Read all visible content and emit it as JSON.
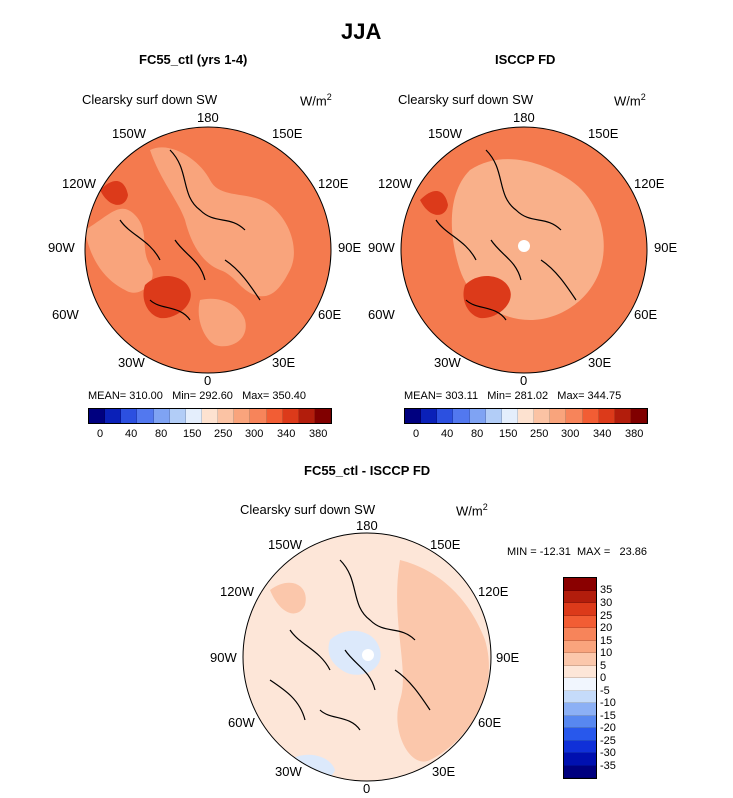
{
  "page": {
    "title": "JJA",
    "panel_left_title": "FC55_ctl (yrs 1-4)",
    "panel_right_title": "ISCCP FD",
    "panel_bottom_title": "FC55_ctl - ISCCP FD"
  },
  "maps": [
    {
      "id": "left",
      "label": "Clearsky surf down SW",
      "units": "W/m",
      "units_sup": "2",
      "lon_labels": [
        "180",
        "150E",
        "120E",
        "90E",
        "60E",
        "30E",
        "0",
        "30W",
        "60W",
        "90W",
        "120W",
        "150W"
      ],
      "stats": {
        "mean": "MEAN= 310.00",
        "min": "Min= 292.60",
        "max": "Max= 350.40"
      },
      "colorbar": {
        "colors": [
          "#00007f",
          "#0a20b8",
          "#2c50e0",
          "#5278ef",
          "#7fa3f3",
          "#b2cdf7",
          "#e4eefc",
          "#fde2d0",
          "#fbc3a4",
          "#f9a47c",
          "#f7845a",
          "#f25d34",
          "#dc3a1a",
          "#b21d0c",
          "#800000"
        ],
        "labels": [
          "0",
          "40",
          "80",
          "150",
          "250",
          "300",
          "340",
          "380"
        ]
      }
    },
    {
      "id": "right",
      "label": "Clearsky surf down SW",
      "units": "W/m",
      "units_sup": "2",
      "lon_labels": [
        "180",
        "150E",
        "120E",
        "90E",
        "60E",
        "30E",
        "0",
        "30W",
        "60W",
        "90W",
        "120W",
        "150W"
      ],
      "stats": {
        "mean": "MEAN= 303.11",
        "min": "Min= 281.02",
        "max": "Max= 344.75"
      },
      "colorbar": {
        "colors": [
          "#00007f",
          "#0a20b8",
          "#2c50e0",
          "#5278ef",
          "#7fa3f3",
          "#b2cdf7",
          "#e4eefc",
          "#fde2d0",
          "#fbc3a4",
          "#f9a47c",
          "#f7845a",
          "#f25d34",
          "#dc3a1a",
          "#b21d0c",
          "#800000"
        ],
        "labels": [
          "0",
          "40",
          "80",
          "150",
          "250",
          "300",
          "340",
          "380"
        ]
      }
    },
    {
      "id": "diff",
      "label": "Clearsky surf down SW",
      "units": "W/m",
      "units_sup": "2",
      "lon_labels": [
        "180",
        "150E",
        "120E",
        "90E",
        "60E",
        "30E",
        "0",
        "30W",
        "60W",
        "90W",
        "120W",
        "150W"
      ],
      "stats_line": "MIN = -12.31  MAX =   23.86",
      "colorbar": {
        "colors": [
          "#00007f",
          "#0010b0",
          "#1030d8",
          "#2858ec",
          "#5888f0",
          "#8cb0f5",
          "#c5dbfa",
          "#f1f6fe",
          "#fde6d8",
          "#fbc7ab",
          "#f9a47d",
          "#f7845a",
          "#f25d34",
          "#dc3a1a",
          "#b21d0c",
          "#8a0000"
        ],
        "labels": [
          "35",
          "30",
          "25",
          "20",
          "15",
          "10",
          "5",
          "0",
          "-5",
          "-10",
          "-15",
          "-20",
          "-25",
          "-30",
          "-35"
        ]
      }
    }
  ],
  "colors": {
    "ocean_left": "#f47a4e",
    "land_left": "#f9a47c",
    "ocean_right": "#f47a4e",
    "land_right": "#f9b08a",
    "dark_patch": "#dc3a1a",
    "diff_base": "#fde6d8",
    "diff_medium": "#fbc7ab",
    "diff_blue": "#dce9fb",
    "coast": "#000000"
  }
}
